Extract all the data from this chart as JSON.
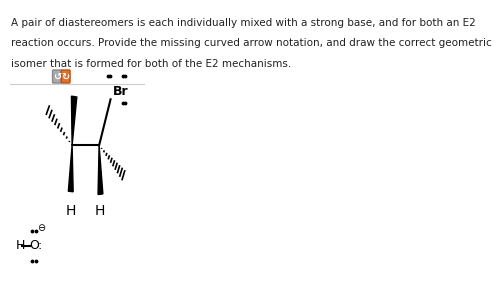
{
  "title_text": "A pair of diastereomers is each individually mixed with a strong base, and for both an E2\nreaction occurs. Provide the missing curved arrow notation, and draw the correct geometric\nisomer that is formed for both of the E2 mechanisms.",
  "title_fontsize": 7.5,
  "title_color": "#222222",
  "background_color": "#ffffff",
  "toolbar_button1_color": "#aaaaaa",
  "toolbar_button2_color": "#e07030"
}
